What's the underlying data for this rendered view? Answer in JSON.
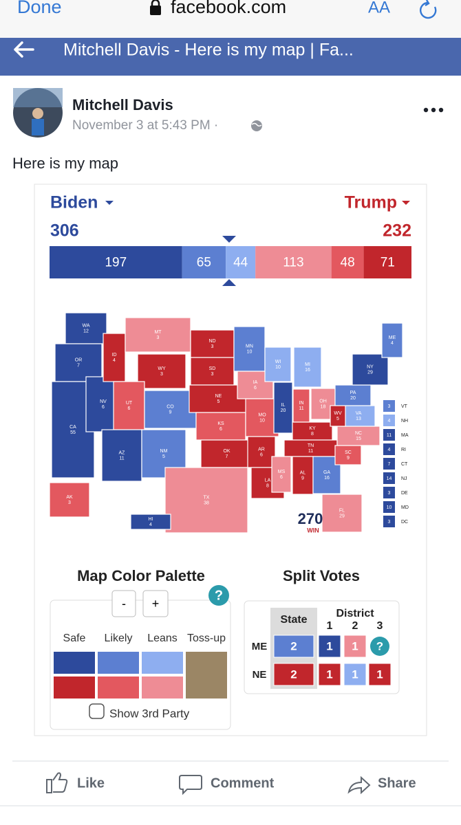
{
  "browser": {
    "done": "Done",
    "url": "facebook.com",
    "text_size": "AA"
  },
  "nav": {
    "title": "Mitchell Davis - Here is my map | Fa..."
  },
  "post": {
    "author": "Mitchell Davis",
    "timestamp": "November 3 at 5:43 PM ·",
    "text": "Here is my map"
  },
  "map": {
    "ratings": {
      "safe-d": "#2d4a9c",
      "likely-d": "#5c7fd1",
      "lean-d": "#8eaef0",
      "toss-up": "#9b8665",
      "lean-r": "#ee8c95",
      "likely-r": "#e3585f",
      "safe-r": "#c1262c"
    },
    "left": {
      "name": "Biden",
      "total": 306
    },
    "right": {
      "name": "Trump",
      "total": 232
    },
    "bar": [
      {
        "value": 197,
        "rating": "safe-d"
      },
      {
        "value": 65,
        "rating": "likely-d"
      },
      {
        "value": 44,
        "rating": "lean-d"
      },
      {
        "value": 113,
        "rating": "lean-r"
      },
      {
        "value": 48,
        "rating": "likely-r"
      },
      {
        "value": 71,
        "rating": "safe-r"
      }
    ],
    "states": [
      {
        "abbr": "WA",
        "ev": 12,
        "rating": "safe-d"
      },
      {
        "abbr": "OR",
        "ev": 7,
        "rating": "safe-d"
      },
      {
        "abbr": "CA",
        "ev": 55,
        "rating": "safe-d"
      },
      {
        "abbr": "NV",
        "ev": 6,
        "rating": "safe-d"
      },
      {
        "abbr": "ID",
        "ev": 4,
        "rating": "safe-r"
      },
      {
        "abbr": "MT",
        "ev": 3,
        "rating": "lean-r"
      },
      {
        "abbr": "WY",
        "ev": 3,
        "rating": "safe-r"
      },
      {
        "abbr": "UT",
        "ev": 6,
        "rating": "likely-r"
      },
      {
        "abbr": "CO",
        "ev": 9,
        "rating": "likely-d"
      },
      {
        "abbr": "AZ",
        "ev": 11,
        "rating": "safe-d"
      },
      {
        "abbr": "NM",
        "ev": 5,
        "rating": "likely-d"
      },
      {
        "abbr": "ND",
        "ev": 3,
        "rating": "safe-r"
      },
      {
        "abbr": "SD",
        "ev": 3,
        "rating": "safe-r"
      },
      {
        "abbr": "NE",
        "ev": 5,
        "rating": "safe-r"
      },
      {
        "abbr": "KS",
        "ev": 6,
        "rating": "likely-r"
      },
      {
        "abbr": "OK",
        "ev": 7,
        "rating": "safe-r"
      },
      {
        "abbr": "TX",
        "ev": 38,
        "rating": "lean-r"
      },
      {
        "abbr": "MN",
        "ev": 10,
        "rating": "likely-d"
      },
      {
        "abbr": "IA",
        "ev": 6,
        "rating": "lean-r"
      },
      {
        "abbr": "MO",
        "ev": 10,
        "rating": "likely-r"
      },
      {
        "abbr": "AR",
        "ev": 6,
        "rating": "safe-r"
      },
      {
        "abbr": "LA",
        "ev": 8,
        "rating": "safe-r"
      },
      {
        "abbr": "WI",
        "ev": 10,
        "rating": "lean-d"
      },
      {
        "abbr": "IL",
        "ev": 20,
        "rating": "safe-d"
      },
      {
        "abbr": "MI",
        "ev": 16,
        "rating": "lean-d"
      },
      {
        "abbr": "IN",
        "ev": 11,
        "rating": "likely-r"
      },
      {
        "abbr": "OH",
        "ev": 18,
        "rating": "lean-r"
      },
      {
        "abbr": "KY",
        "ev": 8,
        "rating": "safe-r"
      },
      {
        "abbr": "TN",
        "ev": 11,
        "rating": "safe-r"
      },
      {
        "abbr": "MS",
        "ev": 6,
        "rating": "lean-r"
      },
      {
        "abbr": "AL",
        "ev": 9,
        "rating": "safe-r"
      },
      {
        "abbr": "GA",
        "ev": 16,
        "rating": "likely-d"
      },
      {
        "abbr": "FL",
        "ev": 29,
        "rating": "lean-r"
      },
      {
        "abbr": "SC",
        "ev": 9,
        "rating": "likely-r"
      },
      {
        "abbr": "NC",
        "ev": 15,
        "rating": "lean-r"
      },
      {
        "abbr": "VA",
        "ev": 13,
        "rating": "lean-d"
      },
      {
        "abbr": "WV",
        "ev": 5,
        "rating": "safe-r"
      },
      {
        "abbr": "PA",
        "ev": 20,
        "rating": "likely-d"
      },
      {
        "abbr": "NY",
        "ev": 29,
        "rating": "safe-d"
      },
      {
        "abbr": "ME",
        "ev": 4,
        "rating": "likely-d"
      },
      {
        "abbr": "AK",
        "ev": 3,
        "rating": "likely-r"
      },
      {
        "abbr": "HI",
        "ev": 4,
        "rating": "safe-d"
      }
    ],
    "small_states": [
      {
        "abbr": "VT",
        "ev": 3,
        "rating": "likely-d"
      },
      {
        "abbr": "NH",
        "ev": 4,
        "rating": "lean-d"
      },
      {
        "abbr": "MA",
        "ev": 11,
        "rating": "safe-d"
      },
      {
        "abbr": "RI",
        "ev": 4,
        "rating": "safe-d"
      },
      {
        "abbr": "CT",
        "ev": 7,
        "rating": "safe-d"
      },
      {
        "abbr": "NJ",
        "ev": 14,
        "rating": "safe-d"
      },
      {
        "abbr": "DE",
        "ev": 3,
        "rating": "safe-d"
      },
      {
        "abbr": "MD",
        "ev": 10,
        "rating": "safe-d"
      },
      {
        "abbr": "DC",
        "ev": 3,
        "rating": "safe-d"
      }
    ],
    "logo": {
      "number": "270",
      "word": "WIN"
    }
  },
  "palette": {
    "title": "Map Color Palette",
    "minus": "-",
    "plus": "+",
    "help": "?",
    "columns": [
      "Safe",
      "Likely",
      "Leans",
      "Toss-up"
    ],
    "checkbox": "Show 3rd Party"
  },
  "split": {
    "title": "Split Votes",
    "state_header": "State",
    "district_header": "District",
    "districts": [
      "1",
      "2",
      "3"
    ],
    "rows": [
      {
        "label": "ME",
        "cells": [
          {
            "text": "2",
            "rating": "likely-d"
          },
          {
            "text": "1",
            "rating": "safe-d"
          },
          {
            "text": "1",
            "rating": "lean-r"
          },
          {
            "text": "?",
            "rating": "help"
          }
        ]
      },
      {
        "label": "NE",
        "cells": [
          {
            "text": "2",
            "rating": "safe-r"
          },
          {
            "text": "1",
            "rating": "safe-r"
          },
          {
            "text": "1",
            "rating": "lean-d"
          },
          {
            "text": "1",
            "rating": "safe-r"
          }
        ]
      }
    ]
  },
  "actions": [
    "Like",
    "Comment",
    "Share"
  ]
}
